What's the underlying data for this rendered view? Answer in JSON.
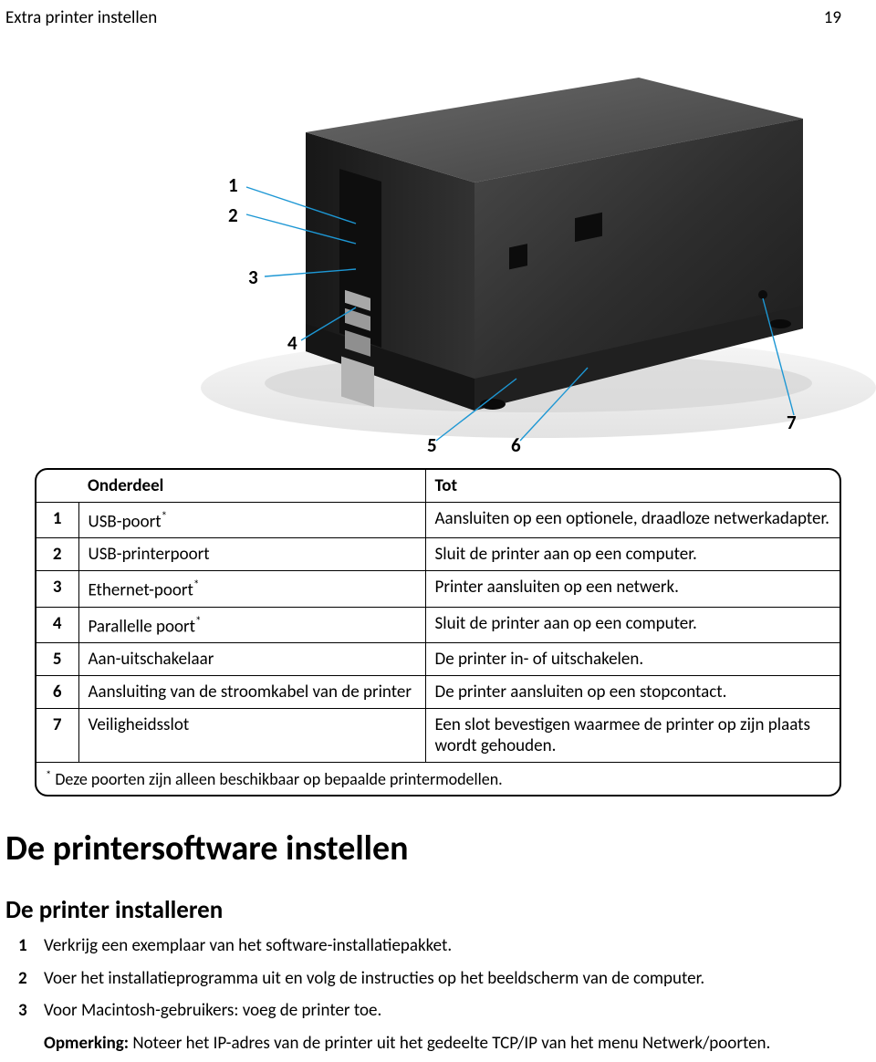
{
  "header": {
    "section_title": "Extra printer instellen",
    "page_number": "19"
  },
  "figure": {
    "callouts": [
      "1",
      "2",
      "3",
      "4",
      "5",
      "6",
      "7"
    ]
  },
  "parts_table": {
    "headers": {
      "num": "",
      "part": "Onderdeel",
      "purpose": "Tot"
    },
    "rows": [
      {
        "num": "1",
        "part_pre": "USB-poort",
        "part_sup": "*",
        "purpose": "Aansluiten op een optionele, draadloze netwerkadapter."
      },
      {
        "num": "2",
        "part_pre": "USB-printerpoort",
        "part_sup": "",
        "purpose": "Sluit de printer aan op een computer."
      },
      {
        "num": "3",
        "part_pre": "Ethernet-poort",
        "part_sup": "*",
        "purpose": "Printer aansluiten op een netwerk."
      },
      {
        "num": "4",
        "part_pre": "Parallelle poort",
        "part_sup": "*",
        "purpose": "Sluit de printer aan op een computer."
      },
      {
        "num": "5",
        "part_pre": "Aan-uitschakelaar",
        "part_sup": "",
        "purpose": "De printer in- of uitschakelen."
      },
      {
        "num": "6",
        "part_pre": "Aansluiting van de stroomkabel van de printer",
        "part_sup": "",
        "purpose": "De printer aansluiten op een stopcontact."
      },
      {
        "num": "7",
        "part_pre": "Veiligheidsslot",
        "part_sup": "",
        "purpose": "Een slot bevestigen waarmee de printer op zijn plaats wordt gehouden."
      }
    ],
    "footnote_sup": "*",
    "footnote_text": " Deze poorten zijn alleen beschikbaar op bepaalde printermodellen."
  },
  "section_heading": "De printersoftware instellen",
  "subsection_heading": "De printer installeren",
  "steps": [
    {
      "idx": "1",
      "text": "Verkrijg een exemplaar van het software-installatiepakket."
    },
    {
      "idx": "2",
      "text": "Voer het installatieprogramma uit en volg de instructies op het beeldscherm van de computer."
    },
    {
      "idx": "3",
      "text": "Voor Macintosh-gebruikers: voeg de printer toe."
    }
  ],
  "note": {
    "label": "Opmerking:",
    "text": " Noteer het IP-adres van de printer uit het gedeelte TCP/IP van het menu Netwerk/poorten."
  },
  "colors": {
    "printer_body_dark": "#2a2a2a",
    "printer_body_mid": "#3b3b3b",
    "printer_topface": "#575757",
    "floor": "#efefef",
    "shadow": "#cfcfcf",
    "port_metal": "#a8a8a8",
    "port_dark": "#111111",
    "leader": "#1d97d4"
  }
}
